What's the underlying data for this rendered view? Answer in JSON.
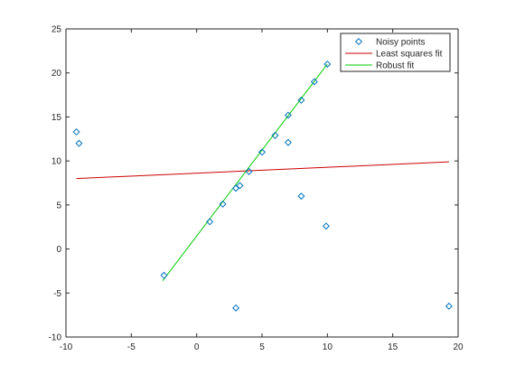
{
  "chart_data": {
    "type": "scatter",
    "title": "",
    "xlabel": "",
    "ylabel": "",
    "xlim": [
      -10,
      20
    ],
    "ylim": [
      -10,
      25
    ],
    "xticks": [
      -10,
      -5,
      0,
      5,
      10,
      15,
      20
    ],
    "yticks": [
      -10,
      -5,
      0,
      5,
      10,
      15,
      20,
      25
    ],
    "grid": false,
    "legend_position": "top-right",
    "series": [
      {
        "name": "Noisy points",
        "kind": "scatter",
        "marker": "diamond-open",
        "color": "#0072bd",
        "points": [
          [
            -9.2,
            13.3
          ],
          [
            -9.0,
            12.0
          ],
          [
            -2.5,
            -3.0
          ],
          [
            1.0,
            3.1
          ],
          [
            2.0,
            5.1
          ],
          [
            3.0,
            6.9
          ],
          [
            3.3,
            7.2
          ],
          [
            4.0,
            8.8
          ],
          [
            5.0,
            11.0
          ],
          [
            6.0,
            12.9
          ],
          [
            7.0,
            15.2
          ],
          [
            7.0,
            12.1
          ],
          [
            8.0,
            16.9
          ],
          [
            8.0,
            6.0
          ],
          [
            9.0,
            19.0
          ],
          [
            10.0,
            21.0
          ],
          [
            9.9,
            2.6
          ],
          [
            3.0,
            -6.7
          ],
          [
            19.3,
            -6.5
          ]
        ]
      },
      {
        "name": "Least squares fit",
        "kind": "line",
        "color": "#cc0000",
        "x": [
          -9.2,
          19.3
        ],
        "y": [
          8.0,
          9.9
        ]
      },
      {
        "name": "Robust fit",
        "kind": "line",
        "color": "#00cc00",
        "x": [
          -2.6,
          10.0
        ],
        "y": [
          -3.6,
          21.0
        ]
      }
    ]
  }
}
